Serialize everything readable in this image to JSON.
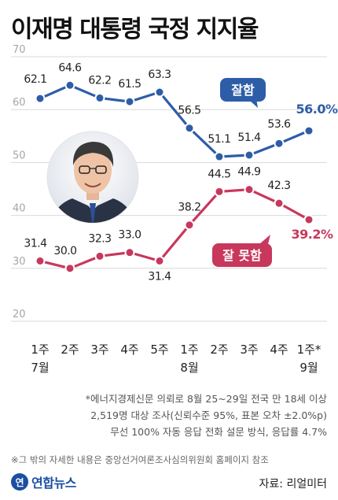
{
  "page": {
    "title": "이재명 대통령 국정 지지율"
  },
  "chart_data": {
    "type": "line",
    "title": "이재명 대통령 국정 지지율",
    "categories": [
      "1주",
      "2주",
      "3주",
      "4주",
      "5주",
      "1주",
      "2주",
      "3주",
      "4주",
      "1주*"
    ],
    "month_labels": [
      {
        "index": 0,
        "label": "7월"
      },
      {
        "index": 5,
        "label": "8월"
      },
      {
        "index": 9,
        "label": "9월"
      }
    ],
    "y_ticks": [
      70,
      60,
      50,
      40,
      30,
      20
    ],
    "ylim": [
      20,
      70
    ],
    "grid": true,
    "series": [
      {
        "name": "잘함",
        "color": "#2e5da8",
        "values": [
          62.1,
          64.6,
          62.2,
          61.5,
          63.3,
          56.5,
          51.1,
          51.4,
          53.6,
          56.0
        ],
        "labels": [
          "62.1",
          "64.6",
          "62.2",
          "61.5",
          "63.3",
          "56.5",
          "51.1",
          "51.4",
          "53.6",
          "56.0%"
        ]
      },
      {
        "name": "잘 못함",
        "color": "#c8385c",
        "values": [
          31.4,
          30.0,
          32.3,
          33.0,
          31.4,
          38.2,
          44.5,
          44.9,
          42.3,
          39.2
        ],
        "labels": [
          "31.4",
          "30.0",
          "32.3",
          "33.0",
          "31.4",
          "38.2",
          "44.5",
          "44.9",
          "42.3",
          "39.2%"
        ]
      }
    ]
  },
  "notes": [
    "*에너지경제신문 의뢰로 8월 25~29일 전국 만 18세 이상",
    "2,519명 대상 조사(신뢰수준 95%, 표본 오차 ±2.0%p)",
    "무선 100% 자동 응답 전화 설문 방식, 응답률 4.7%"
  ],
  "footnote": "※그 밖의 자세한 내용은 중앙선거여론조사심의위원회 홈페이지 참조",
  "logo": {
    "mark": "연",
    "text": "연합뉴스"
  },
  "source": "자료: 리얼미터",
  "colors": {
    "good": "#2e5da8",
    "bad": "#c8385c",
    "grid": "#d9d9d9"
  }
}
